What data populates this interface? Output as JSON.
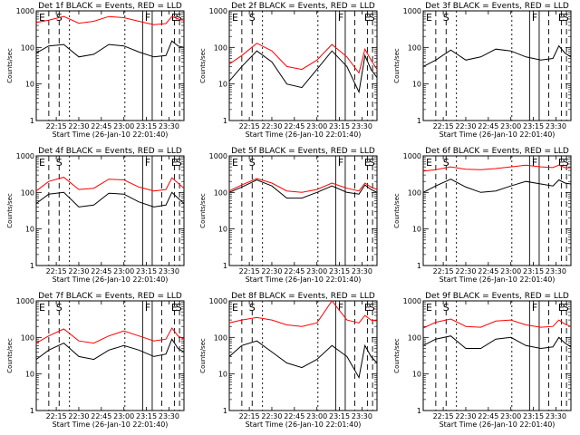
{
  "chart_data": [
    {
      "type": "line",
      "title": "Det 1f BLACK = Events, RED = LLD",
      "xlabel": "Start Time (26-Jan-10 22:01:40)",
      "ylabel": "Counts/sec",
      "markers": [
        "E",
        "S",
        "F",
        "E",
        "S"
      ],
      "series": [
        {
          "name": "BLACK = Events",
          "color": "#000000",
          "x": [
            "22:01:40",
            "22:10",
            "22:20",
            "22:30",
            "22:40",
            "22:50",
            "23:00",
            "23:10",
            "23:20",
            "23:28",
            "23:32",
            "23:36",
            "23:40"
          ],
          "y": [
            70,
            110,
            120,
            55,
            65,
            120,
            110,
            75,
            55,
            60,
            150,
            110,
            100
          ]
        },
        {
          "name": "RED = LLD",
          "color": "#ff0000",
          "x": [
            "22:01:40",
            "22:10",
            "22:20",
            "22:30",
            "22:40",
            "22:50",
            "23:00",
            "23:10",
            "23:20",
            "23:28",
            "23:32",
            "23:36",
            "23:40"
          ],
          "y": [
            480,
            560,
            700,
            460,
            520,
            700,
            650,
            520,
            420,
            450,
            700,
            600,
            550
          ]
        }
      ]
    },
    {
      "type": "line",
      "title": "Det 2f BLACK = Events, RED = LLD",
      "xlabel": "Start Time (26-Jan-10 22:01:40)",
      "ylabel": "Counts/sec",
      "markers": [
        "E",
        "S",
        "F",
        "E",
        "S"
      ],
      "series": [
        {
          "name": "BLACK = Events",
          "color": "#000000",
          "x": [
            "22:01:40",
            "22:10",
            "22:20",
            "22:30",
            "22:40",
            "22:50",
            "23:00",
            "23:10",
            "23:20",
            "23:28",
            "23:32",
            "23:36",
            "23:40"
          ],
          "y": [
            12,
            30,
            80,
            40,
            10,
            8,
            25,
            80,
            30,
            6,
            60,
            25,
            15
          ]
        },
        {
          "name": "RED = LLD",
          "color": "#ff0000",
          "x": [
            "22:01:40",
            "22:10",
            "22:20",
            "22:30",
            "22:40",
            "22:50",
            "23:00",
            "23:10",
            "23:20",
            "23:28",
            "23:32",
            "23:36",
            "23:40"
          ],
          "y": [
            35,
            60,
            130,
            80,
            30,
            25,
            45,
            120,
            55,
            20,
            90,
            45,
            25
          ]
        }
      ]
    },
    {
      "type": "line",
      "title": "Det 3f BLACK = Events, RED = LLD",
      "xlabel": "Start Time (26-Jan-10 22:01:40)",
      "ylabel": "Counts/sec",
      "markers": [
        "E",
        "S",
        "F",
        "E",
        "S"
      ],
      "series": [
        {
          "name": "BLACK = Events",
          "color": "#000000",
          "x": [
            "22:01:40",
            "22:10",
            "22:20",
            "22:30",
            "22:40",
            "22:50",
            "23:00",
            "23:10",
            "23:20",
            "23:28",
            "23:32",
            "23:36",
            "23:40"
          ],
          "y": [
            30,
            45,
            85,
            45,
            55,
            90,
            80,
            55,
            45,
            50,
            110,
            70,
            55
          ]
        }
      ]
    },
    {
      "type": "line",
      "title": "Det 4f BLACK = Events, RED = LLD",
      "xlabel": "Start Time (26-Jan-10 22:01:40)",
      "ylabel": "Counts/sec",
      "markers": [
        "E",
        "S",
        "F",
        "E",
        "S"
      ],
      "series": [
        {
          "name": "BLACK = Events",
          "color": "#000000",
          "x": [
            "22:01:40",
            "22:10",
            "22:20",
            "22:30",
            "22:40",
            "22:50",
            "23:00",
            "23:10",
            "23:20",
            "23:28",
            "23:32",
            "23:36",
            "23:40"
          ],
          "y": [
            50,
            90,
            100,
            40,
            45,
            95,
            90,
            55,
            40,
            45,
            100,
            70,
            50
          ]
        },
        {
          "name": "RED = LLD",
          "color": "#ff0000",
          "x": [
            "22:01:40",
            "22:10",
            "22:20",
            "22:30",
            "22:40",
            "22:50",
            "23:00",
            "23:10",
            "23:20",
            "23:28",
            "23:32",
            "23:36",
            "23:40"
          ],
          "y": [
            110,
            200,
            260,
            120,
            130,
            230,
            220,
            140,
            110,
            120,
            250,
            180,
            130
          ]
        }
      ]
    },
    {
      "type": "line",
      "title": "Det 5f BLACK = Events, RED = LLD",
      "xlabel": "Start Time (26-Jan-10 22:01:40)",
      "ylabel": "Counts/sec",
      "markers": [
        "E",
        "S",
        "F",
        "E",
        "S"
      ],
      "series": [
        {
          "name": "BLACK = Events",
          "color": "#000000",
          "x": [
            "22:01:40",
            "22:10",
            "22:20",
            "22:30",
            "22:40",
            "22:50",
            "23:00",
            "23:10",
            "23:20",
            "23:28",
            "23:32",
            "23:36",
            "23:40"
          ],
          "y": [
            100,
            140,
            220,
            150,
            70,
            70,
            100,
            150,
            100,
            90,
            160,
            120,
            100
          ]
        },
        {
          "name": "RED = LLD",
          "color": "#ff0000",
          "x": [
            "22:01:40",
            "22:10",
            "22:20",
            "22:30",
            "22:40",
            "22:50",
            "23:00",
            "23:10",
            "23:20",
            "23:28",
            "23:32",
            "23:36",
            "23:40"
          ],
          "y": [
            110,
            160,
            240,
            180,
            110,
            100,
            120,
            180,
            130,
            110,
            180,
            140,
            120
          ]
        }
      ]
    },
    {
      "type": "line",
      "title": "Det 6f BLACK = Events, RED = LLD",
      "xlabel": "Start Time (26-Jan-10 22:01:40)",
      "ylabel": "Counts/sec",
      "markers": [
        "E",
        "S",
        "F",
        "E",
        "S"
      ],
      "series": [
        {
          "name": "BLACK = Events",
          "color": "#000000",
          "x": [
            "22:01:40",
            "22:10",
            "22:20",
            "22:30",
            "22:40",
            "22:50",
            "23:00",
            "23:10",
            "23:20",
            "23:28",
            "23:32",
            "23:36",
            "23:40"
          ],
          "y": [
            100,
            150,
            230,
            140,
            100,
            110,
            150,
            200,
            170,
            150,
            220,
            180,
            170
          ]
        },
        {
          "name": "RED = LLD",
          "color": "#ff0000",
          "x": [
            "22:01:40",
            "22:10",
            "22:20",
            "22:30",
            "22:40",
            "22:50",
            "23:00",
            "23:10",
            "23:20",
            "23:28",
            "23:32",
            "23:36",
            "23:40"
          ],
          "y": [
            380,
            420,
            500,
            430,
            420,
            450,
            500,
            560,
            500,
            480,
            560,
            480,
            470
          ]
        }
      ]
    },
    {
      "type": "line",
      "title": "Det 7f BLACK = Events, RED = LLD",
      "xlabel": "Start Time (26-Jan-10 22:01:40)",
      "ylabel": "Counts/sec",
      "markers": [
        "E",
        "S",
        "F",
        "E",
        "S"
      ],
      "series": [
        {
          "name": "BLACK = Events",
          "color": "#000000",
          "x": [
            "22:01:40",
            "22:10",
            "22:20",
            "22:30",
            "22:40",
            "22:50",
            "23:00",
            "23:10",
            "23:20",
            "23:28",
            "23:32",
            "23:36",
            "23:40"
          ],
          "y": [
            25,
            45,
            70,
            30,
            25,
            45,
            60,
            45,
            30,
            35,
            90,
            50,
            40
          ]
        },
        {
          "name": "RED = LLD",
          "color": "#ff0000",
          "x": [
            "22:01:40",
            "22:10",
            "22:20",
            "22:30",
            "22:40",
            "22:50",
            "23:00",
            "23:10",
            "23:20",
            "23:28",
            "23:32",
            "23:36",
            "23:40"
          ],
          "y": [
            70,
            110,
            170,
            80,
            70,
            110,
            150,
            110,
            80,
            90,
            180,
            110,
            90
          ]
        }
      ]
    },
    {
      "type": "line",
      "title": "Det 8f BLACK = Events, RED = LLD",
      "xlabel": "Start Time (26-Jan-10 22:01:40)",
      "ylabel": "Counts/sec",
      "markers": [
        "E",
        "S",
        "F",
        "E",
        "S"
      ],
      "series": [
        {
          "name": "BLACK = Events",
          "color": "#000000",
          "x": [
            "22:01:40",
            "22:10",
            "22:20",
            "22:30",
            "22:40",
            "22:50",
            "23:00",
            "23:10",
            "23:20",
            "23:28",
            "23:32",
            "23:36",
            "23:40"
          ],
          "y": [
            30,
            60,
            80,
            40,
            20,
            15,
            25,
            60,
            30,
            8,
            60,
            30,
            20
          ]
        },
        {
          "name": "RED = LLD",
          "color": "#ff0000",
          "x": [
            "22:01:40",
            "22:10",
            "22:20",
            "22:30",
            "22:40",
            "22:50",
            "23:00",
            "23:10",
            "23:20",
            "23:28",
            "23:32",
            "23:36",
            "23:40"
          ],
          "y": [
            250,
            300,
            350,
            300,
            220,
            200,
            250,
            1000,
            300,
            250,
            400,
            300,
            280
          ]
        }
      ]
    },
    {
      "type": "line",
      "title": "Det 9f BLACK = Events, RED = LLD",
      "xlabel": "Start Time (26-Jan-10 22:01:40)",
      "ylabel": "Counts/sec",
      "markers": [
        "E",
        "S",
        "F",
        "E",
        "S"
      ],
      "series": [
        {
          "name": "BLACK = Events",
          "color": "#000000",
          "x": [
            "22:01:40",
            "22:10",
            "22:20",
            "22:30",
            "22:40",
            "22:50",
            "23:00",
            "23:10",
            "23:20",
            "23:28",
            "23:32",
            "23:36",
            "23:40"
          ],
          "y": [
            60,
            90,
            110,
            50,
            50,
            90,
            100,
            60,
            50,
            55,
            100,
            70,
            55
          ]
        },
        {
          "name": "RED = LLD",
          "color": "#ff0000",
          "x": [
            "22:01:40",
            "22:10",
            "22:20",
            "22:30",
            "22:40",
            "22:50",
            "23:00",
            "23:10",
            "23:20",
            "23:28",
            "23:32",
            "23:36",
            "23:40"
          ],
          "y": [
            180,
            260,
            320,
            200,
            190,
            280,
            300,
            220,
            190,
            200,
            300,
            230,
            200
          ]
        }
      ]
    }
  ],
  "axes": {
    "x_tick_labels": [
      "22:15",
      "22:30",
      "22:45",
      "23:00",
      "23:15",
      "23:30"
    ],
    "y_tick_labels": [
      "1",
      "10",
      "100",
      "1000"
    ],
    "y_scale": "log",
    "ylim": [
      1,
      1000
    ],
    "xlim": [
      "22:01:40",
      "23:40"
    ]
  }
}
